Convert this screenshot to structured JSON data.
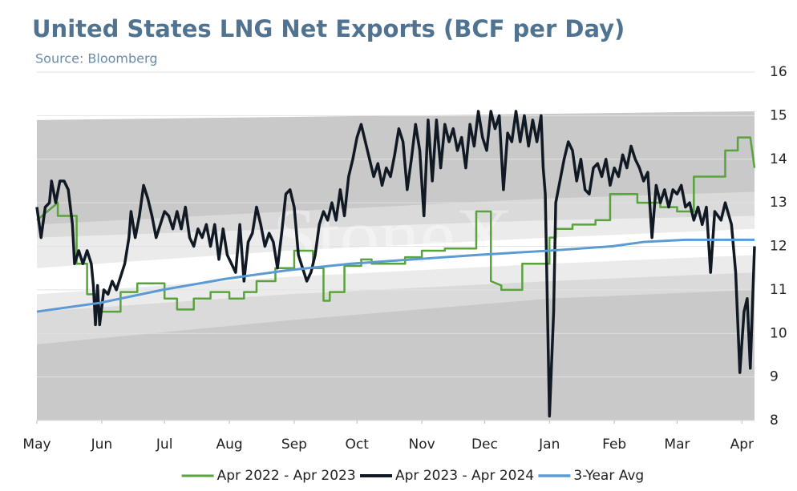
{
  "chart_data": {
    "type": "line",
    "title": "United States LNG Net Exports (BCF per Day)",
    "subtitle": "Source: Bloomberg",
    "watermark": "StoneX",
    "xlim": [
      0,
      343
    ],
    "xticks": [
      {
        "value": 0,
        "label": "May"
      },
      {
        "value": 31,
        "label": "Jun"
      },
      {
        "value": 61,
        "label": "Jul"
      },
      {
        "value": 92,
        "label": "Aug"
      },
      {
        "value": 123,
        "label": "Sep"
      },
      {
        "value": 153,
        "label": "Oct"
      },
      {
        "value": 184,
        "label": "Nov"
      },
      {
        "value": 214,
        "label": "Dec"
      },
      {
        "value": 245,
        "label": "Jan"
      },
      {
        "value": 276,
        "label": "Feb"
      },
      {
        "value": 306,
        "label": "Mar"
      },
      {
        "value": 337,
        "label": "Apr"
      }
    ],
    "ylim": [
      8,
      16
    ],
    "yticks": [
      8,
      9,
      10,
      11,
      12,
      13,
      14,
      15,
      16
    ],
    "grid": true,
    "legend": "bottom",
    "bands": [
      {
        "color": "#c9c9c9",
        "x": [
          0,
          343
        ],
        "lower": [
          8,
          8
        ],
        "upper": [
          14.9,
          15.1
        ]
      },
      {
        "color": "#dadada",
        "x": [
          0,
          120,
          245,
          343
        ],
        "lower": [
          9.75,
          10.3,
          10.8,
          11.0
        ],
        "upper": [
          12.5,
          12.8,
          13.1,
          13.25
        ]
      },
      {
        "color": "#ebebeb",
        "x": [
          0,
          120,
          245,
          343
        ],
        "lower": [
          10.5,
          10.9,
          11.2,
          11.4
        ],
        "upper": [
          12.2,
          12.4,
          12.6,
          12.7
        ]
      },
      {
        "color": "#ffffff",
        "x": [
          0,
          120,
          245,
          343
        ],
        "lower": [
          10.9,
          11.3,
          11.6,
          11.8
        ],
        "upper": [
          11.5,
          11.9,
          12.2,
          12.4
        ]
      }
    ],
    "series": [
      {
        "name": "Apr 2022 - Apr 2023",
        "color": "#5aa23c",
        "width": 2.5,
        "x": [
          0,
          10,
          10,
          19,
          19,
          24,
          24,
          28,
          28,
          40,
          40,
          48,
          48,
          61,
          61,
          67,
          67,
          75,
          75,
          83,
          83,
          92,
          92,
          99,
          99,
          105,
          105,
          114,
          114,
          123,
          123,
          132,
          132,
          137,
          137,
          140,
          140,
          147,
          147,
          155,
          155,
          160,
          160,
          168,
          168,
          176,
          176,
          184,
          184,
          195,
          195,
          210,
          210,
          217,
          217,
          222,
          222,
          232,
          232,
          245,
          245,
          248,
          248,
          256,
          256,
          267,
          267,
          274,
          274,
          287,
          287,
          298,
          298,
          306,
          306,
          314,
          314,
          329,
          329,
          335,
          335,
          341,
          343
        ],
        "values": [
          12.6,
          13.0,
          12.7,
          12.7,
          11.6,
          11.6,
          10.9,
          10.9,
          10.5,
          10.5,
          10.95,
          10.95,
          11.15,
          11.15,
          10.8,
          10.8,
          10.55,
          10.55,
          10.8,
          10.8,
          10.95,
          10.95,
          10.8,
          10.8,
          10.95,
          10.95,
          11.2,
          11.2,
          11.5,
          11.5,
          11.9,
          11.9,
          11.5,
          11.5,
          10.75,
          10.75,
          10.95,
          10.95,
          11.55,
          11.55,
          11.7,
          11.7,
          11.6,
          11.6,
          11.6,
          11.6,
          11.75,
          11.75,
          11.9,
          11.9,
          11.95,
          11.95,
          12.8,
          12.8,
          11.2,
          11.1,
          11.0,
          11.0,
          11.6,
          11.6,
          12.2,
          12.2,
          12.4,
          12.4,
          12.5,
          12.5,
          12.6,
          12.6,
          13.2,
          13.2,
          13.0,
          13.0,
          12.9,
          12.9,
          12.8,
          12.8,
          13.6,
          13.6,
          14.2,
          14.2,
          14.5,
          14.5,
          13.8
        ]
      },
      {
        "name": "Apr 2023 - Apr 2024",
        "color": "#111a24",
        "width": 3.5,
        "x": [
          0,
          2,
          4,
          6,
          7,
          9,
          11,
          13,
          15,
          17,
          18,
          20,
          22,
          24,
          26,
          27,
          28,
          29,
          30,
          32,
          34,
          36,
          38,
          40,
          42,
          44,
          45,
          47,
          49,
          51,
          53,
          55,
          57,
          59,
          61,
          63,
          65,
          67,
          69,
          71,
          73,
          75,
          77,
          79,
          81,
          83,
          85,
          87,
          89,
          91,
          93,
          95,
          97,
          99,
          101,
          103,
          105,
          107,
          109,
          111,
          113,
          115,
          117,
          119,
          121,
          123,
          125,
          127,
          129,
          131,
          133,
          135,
          137,
          139,
          141,
          143,
          145,
          147,
          149,
          151,
          153,
          155,
          157,
          159,
          161,
          163,
          165,
          167,
          169,
          171,
          173,
          175,
          177,
          179,
          181,
          183,
          185,
          187,
          189,
          191,
          193,
          195,
          197,
          199,
          201,
          203,
          205,
          207,
          209,
          211,
          213,
          215,
          217,
          219,
          221,
          223,
          225,
          227,
          229,
          231,
          233,
          235,
          237,
          239,
          241,
          242,
          243,
          245,
          247,
          248,
          250,
          252,
          254,
          256,
          258,
          260,
          262,
          264,
          266,
          268,
          270,
          272,
          274,
          276,
          278,
          280,
          282,
          284,
          286,
          288,
          290,
          292,
          294,
          296,
          298,
          300,
          302,
          304,
          306,
          308,
          310,
          312,
          314,
          316,
          318,
          320,
          322,
          324,
          327,
          329,
          332,
          334,
          336,
          338,
          339.5,
          341,
          343
        ],
        "values": [
          12.9,
          12.2,
          12.9,
          13.0,
          13.5,
          13.0,
          13.5,
          13.5,
          13.3,
          12.5,
          11.6,
          11.9,
          11.6,
          11.9,
          11.6,
          11.1,
          10.2,
          11.1,
          10.2,
          11.0,
          10.9,
          11.2,
          11.0,
          11.3,
          11.6,
          12.2,
          12.8,
          12.2,
          12.7,
          13.4,
          13.1,
          12.7,
          12.2,
          12.5,
          12.8,
          12.7,
          12.4,
          12.8,
          12.4,
          12.9,
          12.2,
          12.0,
          12.4,
          12.2,
          12.5,
          12.0,
          12.5,
          11.7,
          12.4,
          11.8,
          11.6,
          11.4,
          12.5,
          11.2,
          12.1,
          12.3,
          12.9,
          12.5,
          12.0,
          12.3,
          12.1,
          11.5,
          12.3,
          13.2,
          13.3,
          12.9,
          11.8,
          11.5,
          11.2,
          11.4,
          11.8,
          12.5,
          12.8,
          12.6,
          13.0,
          12.6,
          13.3,
          12.7,
          13.6,
          14.0,
          14.5,
          14.8,
          14.4,
          14.0,
          13.6,
          13.9,
          13.4,
          13.8,
          13.6,
          14.1,
          14.7,
          14.4,
          13.3,
          14.0,
          14.8,
          14.2,
          12.7,
          14.9,
          13.5,
          14.9,
          13.8,
          14.8,
          14.4,
          14.7,
          14.2,
          14.5,
          13.8,
          14.8,
          14.3,
          15.1,
          14.5,
          14.2,
          15.1,
          14.7,
          15.0,
          13.3,
          14.6,
          14.4,
          15.1,
          14.4,
          15.0,
          14.3,
          14.9,
          14.4,
          15.0,
          13.8,
          13.2,
          8.1,
          10.5,
          13.0,
          13.5,
          14.0,
          14.4,
          14.2,
          13.5,
          14.0,
          13.3,
          13.2,
          13.8,
          13.9,
          13.6,
          14.0,
          13.4,
          13.8,
          13.6,
          14.1,
          13.8,
          14.3,
          14.0,
          13.8,
          13.5,
          13.7,
          12.2,
          13.4,
          13.0,
          13.3,
          12.9,
          13.3,
          13.2,
          13.4,
          12.9,
          13.0,
          12.6,
          12.9,
          12.5,
          12.9,
          11.4,
          12.8,
          12.6,
          13.0,
          12.5,
          11.4,
          9.1,
          10.5,
          10.8,
          9.2,
          12.0
        ]
      },
      {
        "name": "3-Year Avg",
        "color": "#5b9bd5",
        "width": 3,
        "x": [
          0,
          30,
          60,
          90,
          120,
          150,
          180,
          210,
          245,
          275,
          290,
          310,
          343
        ],
        "values": [
          10.5,
          10.7,
          11.0,
          11.25,
          11.45,
          11.6,
          11.7,
          11.8,
          11.9,
          12.0,
          12.1,
          12.15,
          12.15
        ]
      }
    ]
  }
}
